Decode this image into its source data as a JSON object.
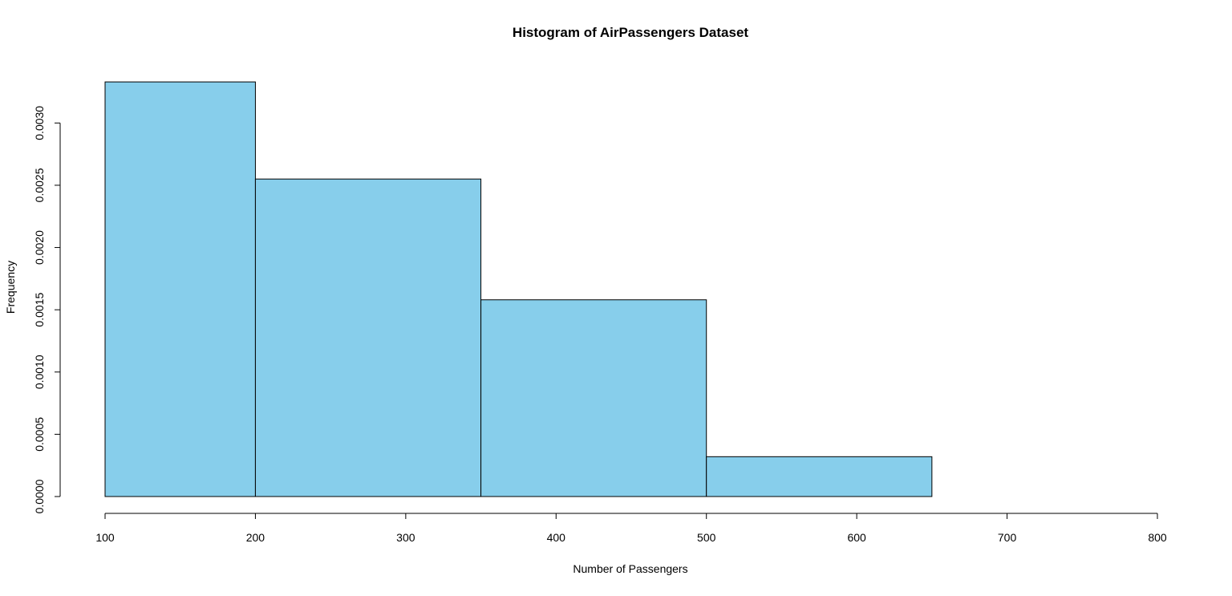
{
  "chart_data": {
    "type": "histogram",
    "title": "Histogram of AirPassengers Dataset",
    "x_label": "Number of Passengers",
    "y_label": "Frequency",
    "bins": [
      100,
      200,
      350,
      500,
      650,
      800
    ],
    "values": [
      0.00333,
      0.00255,
      0.00158,
      0.00032,
      0
    ],
    "color": "#87ceeb",
    "edge_color": "#000000",
    "xlim": [
      100,
      800
    ],
    "ylim": [
      0,
      0.00335
    ],
    "xticks": [
      100,
      200,
      300,
      400,
      500,
      600,
      700,
      800
    ],
    "yticks": [
      {
        "value": 0,
        "label": "0.0000"
      },
      {
        "value": 0.0005,
        "label": "0.0005"
      },
      {
        "value": 0.001,
        "label": "0.0010"
      },
      {
        "value": 0.0015,
        "label": "0.0015"
      },
      {
        "value": 0.002,
        "label": "0.0020"
      },
      {
        "value": 0.0025,
        "label": "0.0025"
      },
      {
        "value": 0.003,
        "label": "0.0030"
      }
    ],
    "grid": false
  }
}
